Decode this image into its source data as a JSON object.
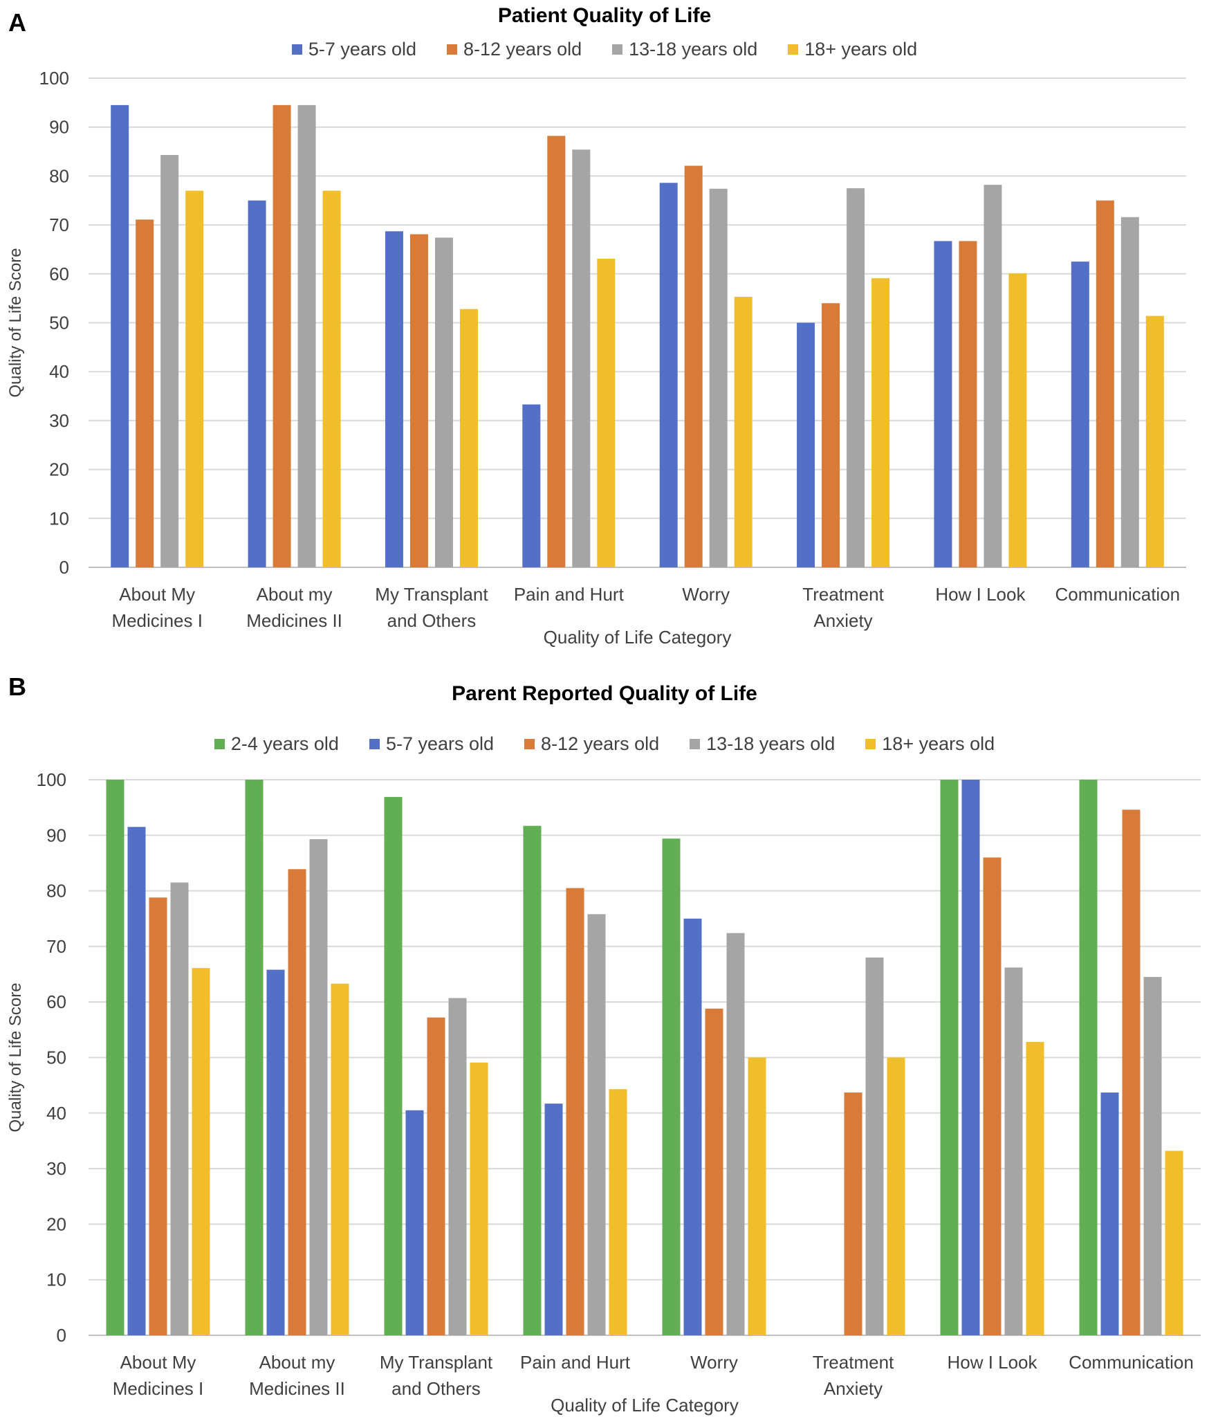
{
  "chart_data": [
    {
      "panel_label": "A",
      "type": "bar",
      "title": "Patient Quality of Life",
      "xlabel": "Quality of Life Category",
      "ylabel": "Quality of Life Score",
      "ylim": [
        0,
        100
      ],
      "yticks": [
        "0",
        "10",
        "20",
        "30",
        "40",
        "50",
        "60",
        "70",
        "80",
        "90",
        "100"
      ],
      "grid": true,
      "legend": "top",
      "categories": [
        [
          "About My",
          "Medicines I"
        ],
        [
          "About my",
          "Medicines II"
        ],
        [
          "My Transplant",
          "and Others"
        ],
        [
          "Pain and Hurt"
        ],
        [
          "Worry"
        ],
        [
          "Treatment",
          "Anxiety"
        ],
        [
          "How I Look"
        ],
        [
          "Communication"
        ]
      ],
      "series": [
        {
          "name": "5-7 years old",
          "color": "#5470C6",
          "values": [
            94.5,
            75,
            68.7,
            33.3,
            78.6,
            50,
            66.7,
            62.5
          ]
        },
        {
          "name": "8-12 years old",
          "color": "#D97B38",
          "values": [
            71.1,
            94.5,
            68.1,
            88.2,
            82.1,
            54,
            66.7,
            75
          ]
        },
        {
          "name": "13-18 years old",
          "color": "#A5A5A5",
          "values": [
            84.3,
            94.5,
            67.4,
            85.4,
            77.4,
            77.5,
            78.2,
            71.6
          ]
        },
        {
          "name": "18+ years old",
          "color": "#F0BE2B",
          "values": [
            77,
            77,
            52.8,
            63.1,
            55.3,
            59.1,
            60.1,
            51.4
          ]
        }
      ]
    },
    {
      "panel_label": "B",
      "type": "bar",
      "title": "Parent Reported Quality of Life",
      "xlabel": "Quality of Life Category",
      "ylabel": "Quality of Life Score",
      "ylim": [
        0,
        100
      ],
      "yticks": [
        "0",
        "10",
        "20",
        "30",
        "40",
        "50",
        "60",
        "70",
        "80",
        "90",
        "100"
      ],
      "grid": true,
      "legend": "top",
      "categories": [
        [
          "About My",
          "Medicines I"
        ],
        [
          "About my",
          "Medicines II"
        ],
        [
          "My Transplant",
          "and Others"
        ],
        [
          "Pain and Hurt"
        ],
        [
          "Worry"
        ],
        [
          "Treatment",
          "Anxiety"
        ],
        [
          "How I Look"
        ],
        [
          "Communication"
        ]
      ],
      "series": [
        {
          "name": "2-4 years old",
          "color": "#61AE55",
          "values": [
            100,
            100,
            96.9,
            91.7,
            89.4,
            0,
            100,
            100
          ]
        },
        {
          "name": "5-7 years old",
          "color": "#5470C6",
          "values": [
            91.5,
            65.8,
            40.5,
            41.7,
            75,
            0,
            100,
            43.7
          ]
        },
        {
          "name": "8-12 years old",
          "color": "#D97B38",
          "values": [
            78.8,
            83.9,
            57.2,
            80.5,
            58.8,
            43.7,
            86,
            94.6
          ]
        },
        {
          "name": "13-18 years old",
          "color": "#A5A5A5",
          "values": [
            81.5,
            89.3,
            60.7,
            75.8,
            72.4,
            68,
            66.2,
            64.5
          ]
        },
        {
          "name": "18+ years old",
          "color": "#F0BE2B",
          "values": [
            66.1,
            63.3,
            49.1,
            44.3,
            50,
            50,
            52.8,
            33.2
          ]
        }
      ]
    }
  ]
}
